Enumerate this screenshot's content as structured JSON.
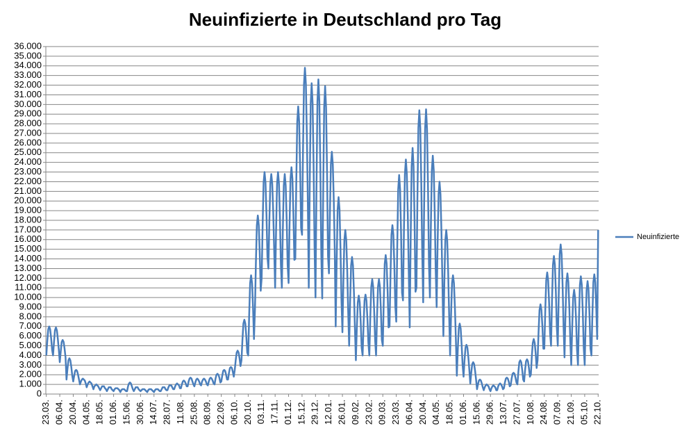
{
  "chart_data": {
    "type": "line",
    "title": "Neuinfizierte in Deutschland pro Tag",
    "categories": [
      "23.03.",
      null,
      null,
      null,
      null,
      null,
      null,
      null,
      null,
      null,
      null,
      null,
      null,
      null,
      "06.04.",
      null,
      null,
      null,
      null,
      null,
      null,
      null,
      null,
      null,
      null,
      null,
      null,
      null,
      "20.04.",
      null,
      null,
      null,
      null,
      null,
      null,
      null,
      null,
      null,
      null,
      null,
      null,
      null,
      "04.05.",
      null,
      null,
      null,
      null,
      null,
      null,
      null,
      null,
      null,
      null,
      null,
      null,
      null,
      "18.05.",
      null,
      null,
      null,
      null,
      null,
      null,
      null,
      null,
      null,
      null,
      null,
      null,
      null,
      "01.06.",
      null,
      null,
      null,
      null,
      null,
      null,
      null,
      null,
      null,
      null,
      null,
      null,
      null,
      "15.06.",
      null,
      null,
      null,
      null,
      null,
      null,
      null,
      null,
      null,
      null,
      null,
      null,
      null,
      "30.06.",
      null,
      null,
      null,
      null,
      null,
      null,
      null,
      null,
      null,
      null,
      null,
      null,
      null,
      "14.07.",
      null,
      null,
      null,
      null,
      null,
      null,
      null,
      null,
      null,
      null,
      null,
      null,
      null,
      "28.07.",
      null,
      null,
      null,
      null,
      null,
      null,
      null,
      null,
      null,
      null,
      null,
      null,
      null,
      "11.08.",
      null,
      null,
      null,
      null,
      null,
      null,
      null,
      null,
      null,
      null,
      null,
      null,
      null,
      "25.08.",
      null,
      null,
      null,
      null,
      null,
      null,
      null,
      null,
      null,
      null,
      null,
      null,
      null,
      "08.09.",
      null,
      null,
      null,
      null,
      null,
      null,
      null,
      null,
      null,
      null,
      null,
      null,
      null,
      "22.09.",
      null,
      null,
      null,
      null,
      null,
      null,
      null,
      null,
      null,
      null,
      null,
      null,
      null,
      "06.10.",
      null,
      null,
      null,
      null,
      null,
      null,
      null,
      null,
      null,
      null,
      null,
      null,
      null,
      "20.10.",
      null,
      null,
      null,
      null,
      null,
      null,
      null,
      null,
      null,
      null,
      null,
      null,
      null,
      "03.11.",
      null,
      null,
      null,
      null,
      null,
      null,
      null,
      null,
      null,
      null,
      null,
      null,
      null,
      "17.11.",
      null,
      null,
      null,
      null,
      null,
      null,
      null,
      null,
      null,
      null,
      null,
      null,
      null,
      "01.12.",
      null,
      null,
      null,
      null,
      null,
      null,
      null,
      null,
      null,
      null,
      null,
      null,
      null,
      "15.12.",
      null,
      null,
      null,
      null,
      null,
      null,
      null,
      null,
      null,
      null,
      null,
      null,
      null,
      "29.12.",
      null,
      null,
      null,
      null,
      null,
      null,
      null,
      null,
      null,
      null,
      null,
      null,
      null,
      "12.01.",
      null,
      null,
      null,
      null,
      null,
      null,
      null,
      null,
      null,
      null,
      null,
      null,
      null,
      "26.01.",
      null,
      null,
      null,
      null,
      null,
      null,
      null,
      null,
      null,
      null,
      null,
      null,
      null,
      "09.02.",
      null,
      null,
      null,
      null,
      null,
      null,
      null,
      null,
      null,
      null,
      null,
      null,
      null,
      "23.02.",
      null,
      null,
      null,
      null,
      null,
      null,
      null,
      null,
      null,
      null,
      null,
      null,
      null,
      "09.03.",
      null,
      null,
      null,
      null,
      null,
      null,
      null,
      null,
      null,
      null,
      null,
      null,
      null,
      "23.03.",
      null,
      null,
      null,
      null,
      null,
      null,
      null,
      null,
      null,
      null,
      null,
      null,
      null,
      "06.04.",
      null,
      null,
      null,
      null,
      null,
      null,
      null,
      null,
      null,
      null,
      null,
      null,
      null,
      "20.04.",
      null,
      null,
      null,
      null,
      null,
      null,
      null,
      null,
      null,
      null,
      null,
      null,
      null,
      "04.05.",
      null,
      null,
      null,
      null,
      null,
      null,
      null,
      null,
      null,
      null,
      null,
      null,
      null,
      "18.05.",
      null,
      null,
      null,
      null,
      null,
      null,
      null,
      null,
      null,
      null,
      null,
      null,
      null,
      "01.06.",
      null,
      null,
      null,
      null,
      null,
      null,
      null,
      null,
      null,
      null,
      null,
      null,
      null,
      "15.06.",
      null,
      null,
      null,
      null,
      null,
      null,
      null,
      null,
      null,
      null,
      null,
      null,
      null,
      "29.06.",
      null,
      null,
      null,
      null,
      null,
      null,
      null,
      null,
      null,
      null,
      null,
      null,
      null,
      "13.07.",
      null,
      null,
      null,
      null,
      null,
      null,
      null,
      null,
      null,
      null,
      null,
      null,
      null,
      "27.07.",
      null,
      null,
      null,
      null,
      null,
      null,
      null,
      null,
      null,
      null,
      null,
      null,
      null,
      "10.08.",
      null,
      null,
      null,
      null,
      null,
      null,
      null,
      null,
      null,
      null,
      null,
      null,
      null,
      "24.08.",
      null,
      null,
      null,
      null,
      null,
      null,
      null,
      null,
      null,
      null,
      null,
      null,
      null,
      "07.09.",
      null,
      null,
      null,
      null,
      null,
      null,
      null,
      null,
      null,
      null,
      null,
      null,
      null,
      "21.09.",
      null,
      null,
      null,
      null,
      null,
      null,
      null,
      null,
      null,
      null,
      null,
      null,
      null,
      "05.10.",
      null,
      null,
      null,
      null,
      null,
      null,
      null,
      null,
      null,
      null,
      null,
      null,
      null,
      "22.10."
    ],
    "series": [
      {
        "name": "Neuinfizierte",
        "color": "#4a7ebb",
        "values": [
          4000,
          5500,
          6700,
          7000,
          6700,
          5800,
          4600,
          4000,
          5400,
          6600,
          6900,
          6600,
          5700,
          4600,
          3300,
          4400,
          5400,
          5600,
          5400,
          4700,
          3800,
          1500,
          2600,
          3500,
          3700,
          3500,
          2800,
          1900,
          1300,
          1900,
          2400,
          2500,
          2400,
          2000,
          1500,
          1000,
          1300,
          1500,
          1600,
          1500,
          1400,
          1100,
          700,
          1000,
          1200,
          1300,
          1200,
          1100,
          800,
          500,
          800,
          900,
          1000,
          900,
          800,
          600,
          400,
          600,
          800,
          800,
          800,
          600,
          500,
          300,
          500,
          700,
          700,
          700,
          500,
          400,
          300,
          500,
          600,
          600,
          600,
          500,
          400,
          200,
          400,
          500,
          500,
          500,
          400,
          300,
          300,
          800,
          1100,
          1200,
          1100,
          800,
          500,
          300,
          500,
          700,
          700,
          700,
          500,
          400,
          300,
          400,
          500,
          500,
          500,
          400,
          300,
          200,
          400,
          500,
          500,
          500,
          400,
          300,
          200,
          400,
          500,
          500,
          500,
          400,
          300,
          300,
          500,
          700,
          700,
          700,
          500,
          400,
          400,
          700,
          900,
          900,
          900,
          700,
          500,
          500,
          800,
          1000,
          1100,
          1000,
          900,
          600,
          600,
          1000,
          1300,
          1400,
          1300,
          1100,
          800,
          800,
          1300,
          1600,
          1700,
          1600,
          1300,
          1000,
          800,
          1200,
          1500,
          1600,
          1500,
          1300,
          1000,
          900,
          1300,
          1500,
          1600,
          1500,
          1300,
          1000,
          900,
          1300,
          1600,
          1700,
          1600,
          1400,
          1100,
          1000,
          1600,
          2000,
          2100,
          2000,
          1700,
          1200,
          1300,
          1900,
          2400,
          2500,
          2400,
          2000,
          1500,
          1500,
          2200,
          2700,
          2800,
          2700,
          2300,
          1800,
          2500,
          3500,
          4300,
          4500,
          4300,
          3700,
          2900,
          3500,
          5600,
          7300,
          7700,
          7300,
          6000,
          4300,
          4000,
          8200,
          11500,
          12300,
          11500,
          9000,
          5700,
          8700,
          13600,
          17500,
          18500,
          17500,
          14600,
          10700,
          12000,
          17500,
          21900,
          23000,
          21900,
          18600,
          14200,
          13000,
          17900,
          21800,
          22800,
          21800,
          18900,
          15000,
          11000,
          17000,
          21800,
          23000,
          21800,
          18200,
          13400,
          11000,
          16900,
          21600,
          22800,
          21600,
          18100,
          13400,
          11500,
          17500,
          22300,
          23500,
          22300,
          18700,
          13900,
          14000,
          21900,
          28200,
          29800,
          28200,
          23500,
          17200,
          16500,
          25200,
          32100,
          33800,
          32100,
          26900,
          20000,
          11000,
          21600,
          30100,
          32200,
          30100,
          23700,
          15200,
          10000,
          21300,
          30300,
          32600,
          30300,
          23600,
          14500,
          9900,
          20900,
          29700,
          31900,
          29700,
          23100,
          14300,
          12500,
          18800,
          23800,
          25100,
          23800,
          20100,
          15000,
          7000,
          13700,
          19100,
          20400,
          19100,
          15000,
          9700,
          6400,
          11700,
          15900,
          17000,
          15900,
          12800,
          8500,
          5000,
          9600,
          13300,
          14200,
          13300,
          10500,
          6800,
          3500,
          6900,
          9500,
          10200,
          9500,
          7500,
          4800,
          4000,
          7200,
          9700,
          10300,
          9700,
          7800,
          5300,
          4000,
          8000,
          11100,
          11900,
          11100,
          8700,
          5600,
          4000,
          8000,
          11100,
          11900,
          11100,
          8700,
          5600,
          5000,
          9700,
          13500,
          14400,
          13500,
          10600,
          6900,
          7000,
          12300,
          16500,
          17500,
          16500,
          13300,
          9100,
          7500,
          15100,
          21200,
          22700,
          21200,
          16600,
          10500,
          9700,
          17000,
          22800,
          24300,
          22800,
          18500,
          12600,
          6900,
          16200,
          23600,
          25500,
          23600,
          18100,
          10600,
          11000,
          20200,
          27600,
          29400,
          27600,
          22000,
          14700,
          9500,
          19500,
          27500,
          29500,
          27500,
          21500,
          13500,
          10000,
          17400,
          23200,
          24700,
          23200,
          18800,
          12900,
          9000,
          15500,
          20700,
          22000,
          20700,
          16800,
          11600,
          6000,
          11500,
          15900,
          17000,
          15900,
          12600,
          8200,
          4000,
          8200,
          11500,
          12300,
          11500,
          9000,
          5700,
          1900,
          4600,
          6800,
          7300,
          6800,
          5100,
          3000,
          1800,
          3500,
          4800,
          5100,
          4800,
          3800,
          2500,
          1100,
          2200,
          3100,
          3300,
          3100,
          2400,
          1500,
          500,
          1000,
          1400,
          1500,
          1400,
          1100,
          700,
          400,
          700,
          900,
          1000,
          900,
          800,
          500,
          300,
          600,
          800,
          900,
          800,
          700,
          400,
          400,
          800,
          1000,
          1100,
          1000,
          800,
          500,
          600,
          1200,
          1600,
          1700,
          1600,
          1300,
          800,
          900,
          1600,
          2100,
          2200,
          2100,
          1700,
          1200,
          1000,
          2300,
          3300,
          3500,
          3300,
          2500,
          1500,
          1300,
          2500,
          3400,
          3600,
          3400,
          2700,
          1800,
          2000,
          3900,
          5300,
          5700,
          5300,
          4200,
          2700,
          3500,
          6400,
          8700,
          9300,
          8700,
          7000,
          4700,
          4700,
          8700,
          11800,
          12600,
          11800,
          9400,
          6300,
          5000,
          9700,
          13400,
          14300,
          13400,
          10600,
          6900,
          5000,
          10300,
          14500,
          15500,
          14500,
          11300,
          7100,
          3800,
          8200,
          11600,
          12500,
          11600,
          9000,
          5500,
          3000,
          6900,
          10000,
          10800,
          10000,
          7700,
          4600,
          3000,
          7600,
          11300,
          12200,
          11300,
          8500,
          4800,
          3000,
          7400,
          10800,
          11700,
          10800,
          8200,
          4700,
          4000,
          8200,
          11600,
          12400,
          11600,
          9000,
          5700,
          17000
        ]
      }
    ],
    "ylim": [
      0,
      36000
    ],
    "yticks": [
      0,
      {
        "value": 1000,
        "label": "1.000"
      },
      {
        "value": 2000,
        "label": "2.000"
      },
      {
        "value": 3000,
        "label": "3.000"
      },
      {
        "value": 4000,
        "label": "4.000"
      },
      {
        "value": 5000,
        "label": "5.000"
      },
      {
        "value": 6000,
        "label": "6.000"
      },
      {
        "value": 7000,
        "label": "7.000"
      },
      {
        "value": 8000,
        "label": "8.000"
      },
      {
        "value": 9000,
        "label": "9.000"
      },
      {
        "value": 10000,
        "label": "10.000"
      },
      {
        "value": 11000,
        "label": "11.000"
      },
      {
        "value": 12000,
        "label": "12.000"
      },
      {
        "value": 13000,
        "label": "13.000"
      },
      {
        "value": 14000,
        "label": "14.000"
      },
      {
        "value": 15000,
        "label": "15.000"
      },
      {
        "value": 16000,
        "label": "16.000"
      },
      {
        "value": 17000,
        "label": "17.000"
      },
      {
        "value": 18000,
        "label": "18.000"
      },
      {
        "value": 19000,
        "label": "19.000"
      },
      {
        "value": 20000,
        "label": "20.000"
      },
      {
        "value": 21000,
        "label": "21.000"
      },
      {
        "value": 22000,
        "label": "22.000"
      },
      {
        "value": 23000,
        "label": "23.000"
      },
      {
        "value": 24000,
        "label": "24.000"
      },
      {
        "value": 25000,
        "label": "25.000"
      },
      {
        "value": 26000,
        "label": "26.000"
      },
      {
        "value": 27000,
        "label": "27.000"
      },
      {
        "value": 28000,
        "label": "28.000"
      },
      {
        "value": 29000,
        "label": "29.000"
      },
      {
        "value": 30000,
        "label": "30.000"
      },
      {
        "value": 31000,
        "label": "31.000"
      },
      {
        "value": 32000,
        "label": "32.000"
      },
      {
        "value": 33000,
        "label": "33.000"
      },
      {
        "value": 34000,
        "label": "34.000"
      },
      {
        "value": 35000,
        "label": "35.000"
      },
      {
        "value": 36000,
        "label": "36.000"
      }
    ],
    "grid": true,
    "legend": "right"
  }
}
